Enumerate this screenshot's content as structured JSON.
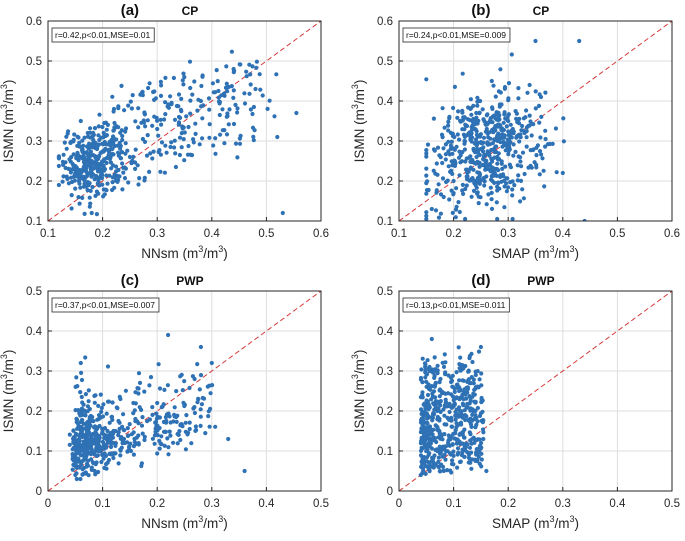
{
  "figure": {
    "colors": {
      "points": "#2e72b5",
      "identity_line": "#d63a3a",
      "grid": "#dedede",
      "axis": "#262626"
    }
  },
  "chart_data": [
    {
      "type": "scatter",
      "panel": "(a)",
      "title": "CP",
      "xlabel": "NNsm",
      "ylabel": "ISMN",
      "unit_base": "m",
      "unit_exp": "3",
      "xlim": [
        0.1,
        0.6
      ],
      "ylim": [
        0.1,
        0.6
      ],
      "xticks": [
        "0.1",
        "0.2",
        "0.3",
        "0.4",
        "0.5",
        "0.6"
      ],
      "yticks": [
        "0.1",
        "0.2",
        "0.3",
        "0.4",
        "0.5",
        "0.6"
      ],
      "stats": "r=0.42,p<0.01,MSE=0.01",
      "grid": true,
      "reference_line": "1:1",
      "n_points": 560,
      "sample_points": [
        [
          0.17,
          0.25
        ],
        [
          0.15,
          0.22
        ],
        [
          0.19,
          0.28
        ],
        [
          0.22,
          0.3
        ],
        [
          0.25,
          0.26
        ],
        [
          0.3,
          0.33
        ],
        [
          0.34,
          0.36
        ],
        [
          0.38,
          0.4
        ],
        [
          0.44,
          0.48
        ],
        [
          0.48,
          0.43
        ],
        [
          0.52,
          0.31
        ],
        [
          0.555,
          0.37
        ],
        [
          0.53,
          0.12
        ],
        [
          0.12,
          0.19
        ],
        [
          0.16,
          0.35
        ],
        [
          0.18,
          0.12
        ]
      ]
    },
    {
      "type": "scatter",
      "panel": "(b)",
      "title": "CP",
      "xlabel": "SMAP",
      "ylabel": "ISMN",
      "unit_base": "m",
      "unit_exp": "3",
      "xlim": [
        0.1,
        0.6
      ],
      "ylim": [
        0.1,
        0.6
      ],
      "xticks": [
        "0.1",
        "0.2",
        "0.3",
        "0.4",
        "0.5",
        "0.6"
      ],
      "yticks": [
        "0.1",
        "0.2",
        "0.3",
        "0.4",
        "0.5",
        "0.6"
      ],
      "stats": "r=0.24,p<0.01,MSE=0.009",
      "grid": true,
      "reference_line": "1:1",
      "n_points": 560,
      "sample_points": [
        [
          0.25,
          0.28
        ],
        [
          0.22,
          0.3
        ],
        [
          0.28,
          0.26
        ],
        [
          0.3,
          0.35
        ],
        [
          0.2,
          0.2
        ],
        [
          0.33,
          0.32
        ],
        [
          0.36,
          0.41
        ],
        [
          0.27,
          0.45
        ],
        [
          0.35,
          0.55
        ],
        [
          0.43,
          0.55
        ],
        [
          0.44,
          0.1
        ],
        [
          0.16,
          0.13
        ],
        [
          0.4,
          0.22
        ]
      ]
    },
    {
      "type": "scatter",
      "panel": "(c)",
      "title": "PWP",
      "xlabel": "NNsm",
      "ylabel": "ISMN",
      "unit_base": "m",
      "unit_exp": "3",
      "xlim": [
        0,
        0.5
      ],
      "ylim": [
        0,
        0.5
      ],
      "xticks": [
        "0",
        "0.1",
        "0.2",
        "0.3",
        "0.4",
        "0.5"
      ],
      "yticks": [
        "0",
        "0.1",
        "0.2",
        "0.3",
        "0.4",
        "0.5"
      ],
      "stats": "r=0.37,p<0.01,MSE=0.007",
      "grid": true,
      "reference_line": "1:1",
      "n_points": 560,
      "sample_points": [
        [
          0.08,
          0.12
        ],
        [
          0.12,
          0.15
        ],
        [
          0.16,
          0.18
        ],
        [
          0.2,
          0.22
        ],
        [
          0.22,
          0.39
        ],
        [
          0.28,
          0.36
        ],
        [
          0.3,
          0.32
        ],
        [
          0.33,
          0.13
        ],
        [
          0.36,
          0.05
        ],
        [
          0.05,
          0.04
        ],
        [
          0.06,
          0.32
        ]
      ]
    },
    {
      "type": "scatter",
      "panel": "(d)",
      "title": "PWP",
      "xlabel": "SMAP",
      "ylabel": "ISMN",
      "unit_base": "m",
      "unit_exp": "3",
      "xlim": [
        0,
        0.5
      ],
      "ylim": [
        0,
        0.5
      ],
      "xticks": [
        "0",
        "0.1",
        "0.2",
        "0.3",
        "0.4",
        "0.5"
      ],
      "yticks": [
        "0",
        "0.1",
        "0.2",
        "0.3",
        "0.4",
        "0.5"
      ],
      "stats": "r=0.13,p<0.01,MSE=0.011",
      "grid": true,
      "reference_line": "1:1",
      "n_points": 560,
      "sample_points": [
        [
          0.05,
          0.15
        ],
        [
          0.07,
          0.2
        ],
        [
          0.09,
          0.12
        ],
        [
          0.11,
          0.25
        ],
        [
          0.13,
          0.18
        ],
        [
          0.06,
          0.38
        ],
        [
          0.15,
          0.36
        ],
        [
          0.16,
          0.05
        ],
        [
          0.04,
          0.04
        ]
      ]
    }
  ]
}
